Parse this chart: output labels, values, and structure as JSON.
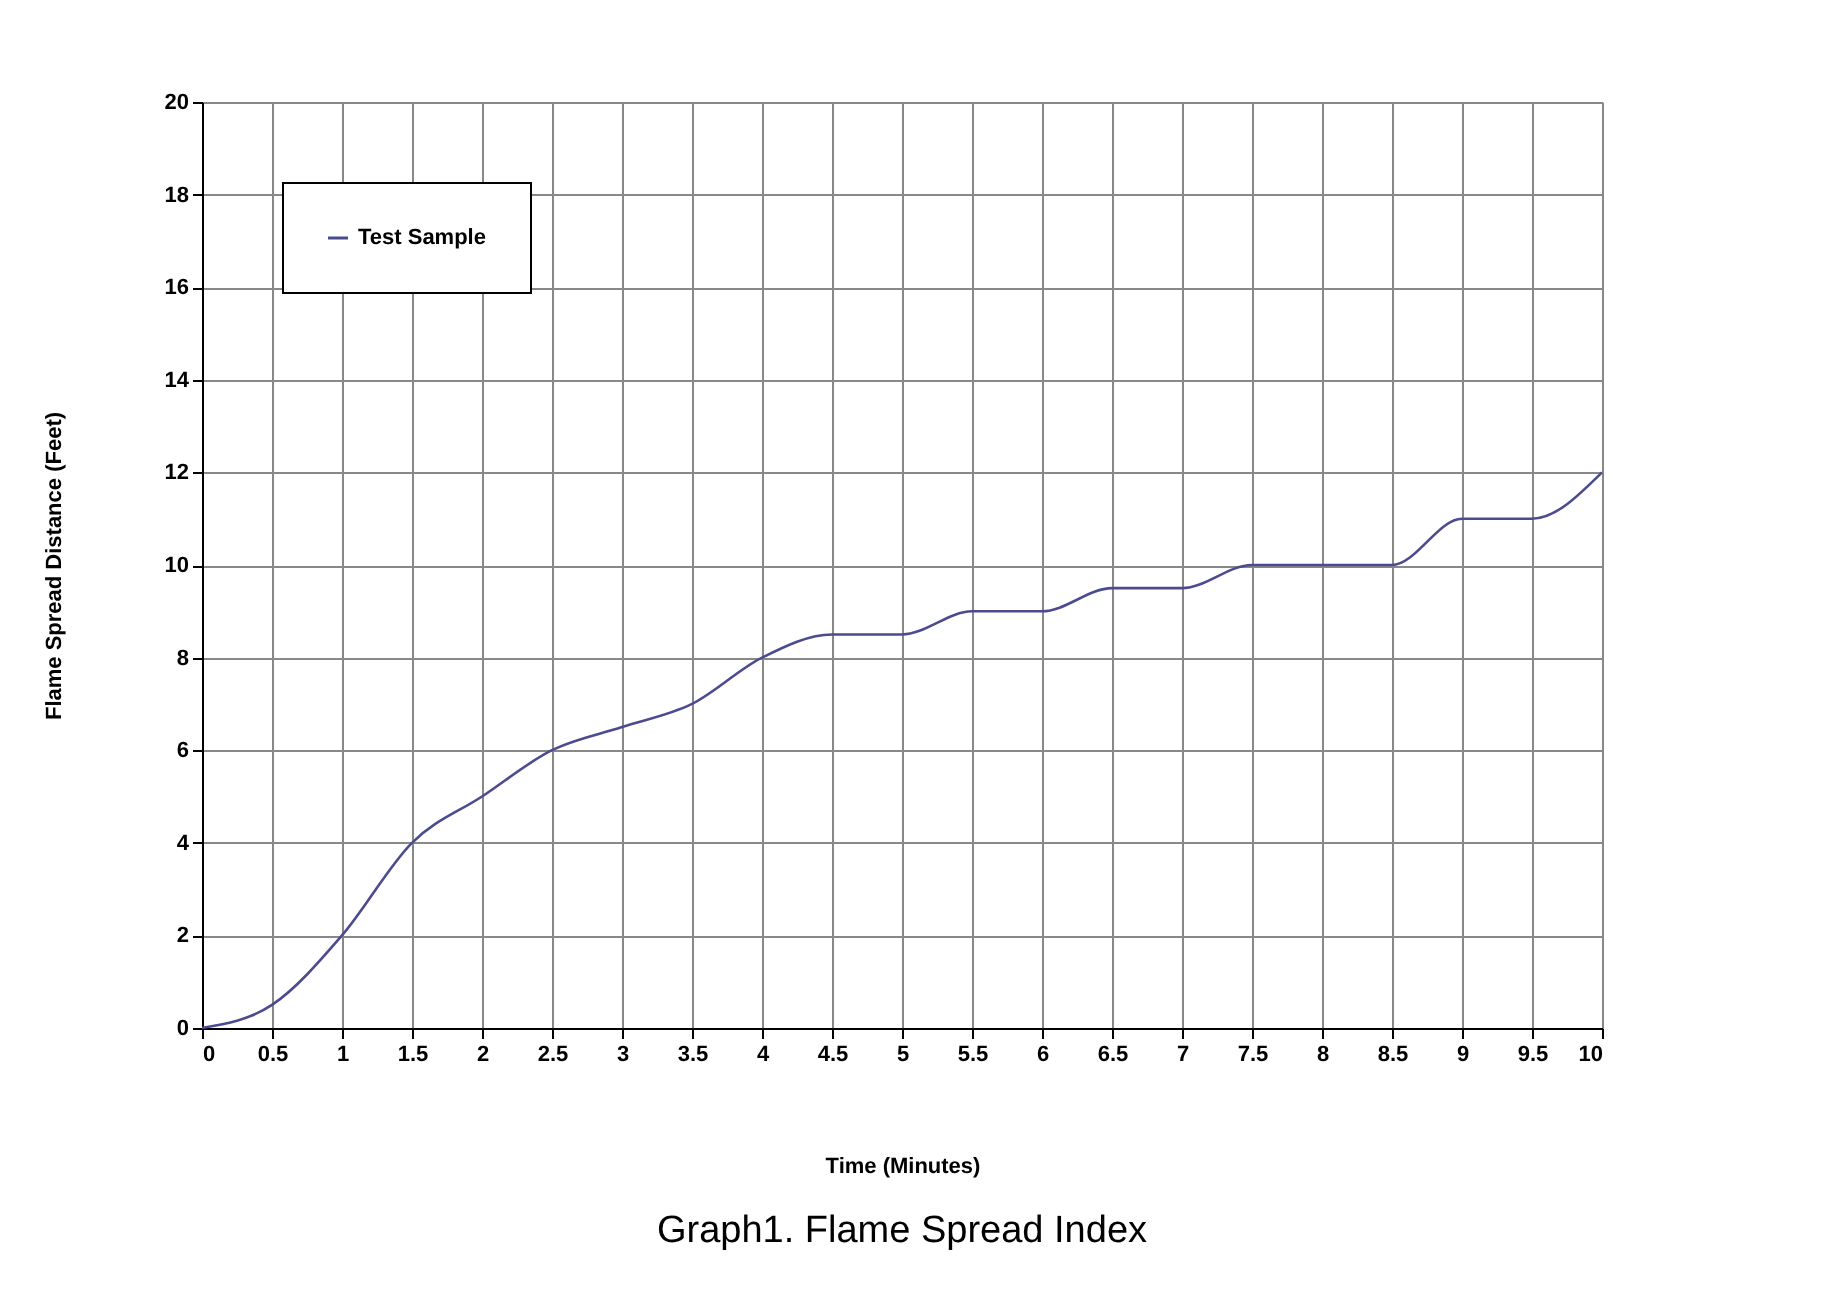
{
  "chart_data": {
    "type": "line",
    "xlabel": "Time (Minutes)",
    "ylabel": "Flame Spread Distance (Feet)",
    "x": [
      0,
      0.5,
      1,
      1.5,
      2,
      2.5,
      3,
      3.5,
      4,
      4.5,
      5,
      5.5,
      6,
      6.5,
      7,
      7.5,
      8,
      8.5,
      9,
      9.5,
      10
    ],
    "series": [
      {
        "name": "Test Sample",
        "color": "#4b4b8f",
        "values": [
          0,
          0.5,
          2,
          4,
          5,
          6,
          6.5,
          7,
          8,
          8.5,
          8.5,
          9,
          9,
          9.5,
          9.5,
          10,
          10,
          10,
          11,
          11,
          12
        ]
      }
    ],
    "xlim": [
      0,
      10
    ],
    "xticks": [
      0,
      0.5,
      1,
      1.5,
      2,
      2.5,
      3,
      3.5,
      4,
      4.5,
      5,
      5.5,
      6,
      6.5,
      7,
      7.5,
      8,
      8.5,
      9,
      9.5,
      10
    ],
    "ylim": [
      0,
      20
    ],
    "yticks": [
      0,
      2,
      4,
      6,
      8,
      10,
      12,
      14,
      16,
      18,
      20
    ],
    "grid": true,
    "legend": "top left",
    "marker": "none",
    "line_style": "solid",
    "annotations": [
      "Graph1.  Flame Spread Index"
    ]
  }
}
